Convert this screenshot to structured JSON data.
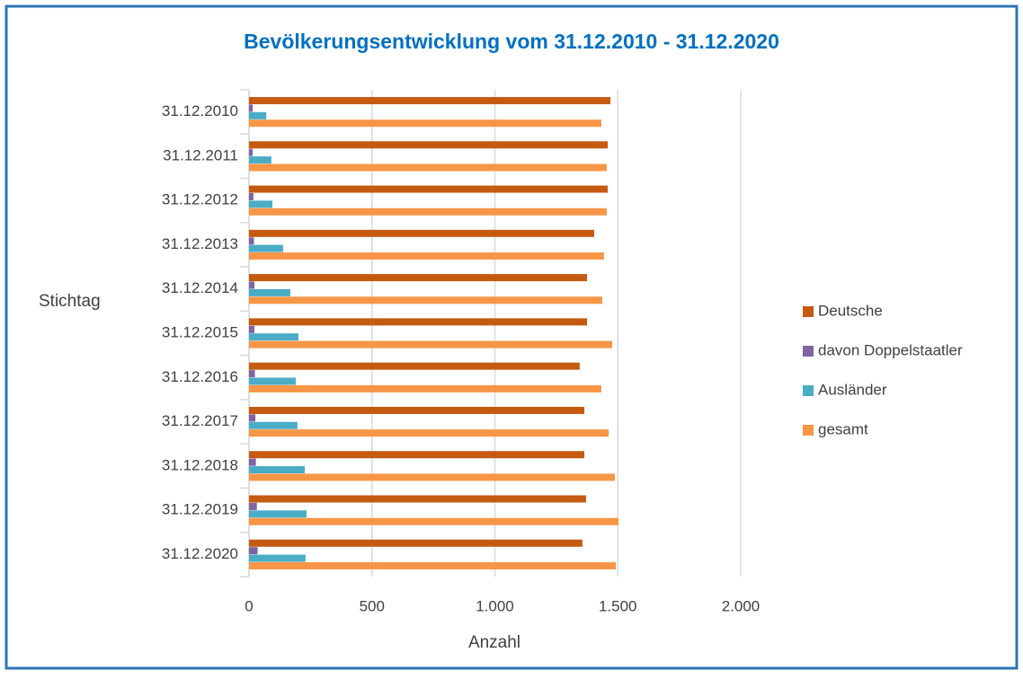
{
  "chart_data": {
    "type": "bar",
    "orientation": "horizontal",
    "title": "Bevölkerungsentwicklung vom 31.12.2010 - 31.12.2020",
    "y_label": "Stichtag",
    "x_label": "Anzahl",
    "categories": [
      "31.12.2010",
      "31.12.2011",
      "31.12.2012",
      "31.12.2013",
      "31.12.2014",
      "31.12.2015",
      "31.12.2016",
      "31.12.2017",
      "31.12.2018",
      "31.12.2019",
      "31.12.2020"
    ],
    "series": [
      {
        "name": "Deutsche",
        "color": "#c55a11",
        "values": [
          1470,
          1459,
          1459,
          1404,
          1375,
          1375,
          1345,
          1364,
          1364,
          1371,
          1356
        ]
      },
      {
        "name": "davon Doppelstaatler",
        "color": "#8064a2",
        "values": [
          15,
          15,
          18,
          20,
          22,
          22,
          24,
          26,
          28,
          32,
          35
        ]
      },
      {
        "name": "Ausländer",
        "color": "#4bacc6",
        "values": [
          70,
          91,
          95,
          139,
          168,
          201,
          190,
          197,
          227,
          234,
          230
        ]
      },
      {
        "name": "gesamt",
        "color": "#f79646",
        "values": [
          1433,
          1455,
          1455,
          1444,
          1437,
          1477,
          1433,
          1463,
          1488,
          1503,
          1492
        ]
      }
    ],
    "xlim": [
      0,
      2000
    ],
    "xticks": [
      0,
      500,
      {
        "value": 1000,
        "label": "1.000"
      },
      {
        "value": 1500,
        "label": "1.500"
      },
      {
        "value": 2000,
        "label": "2.000"
      }
    ],
    "grid": true,
    "legend": "right"
  }
}
